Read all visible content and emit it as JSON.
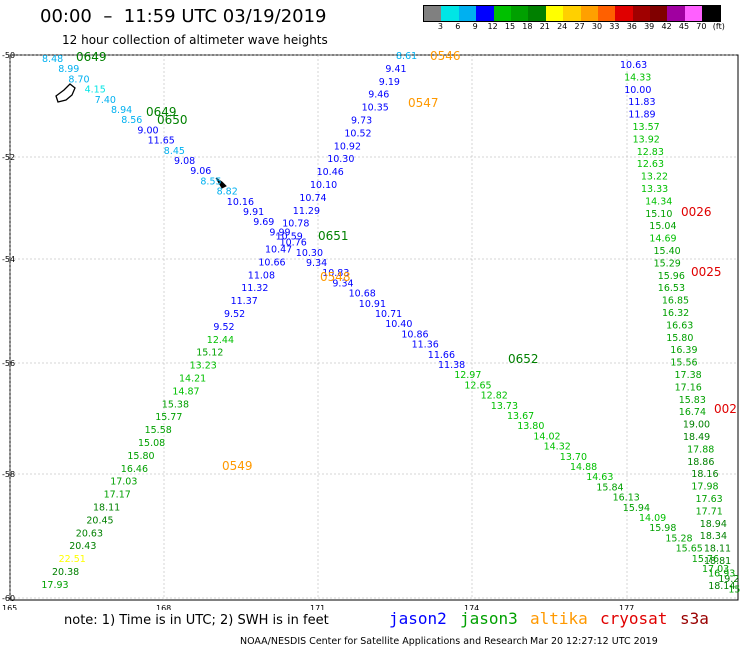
{
  "title": "00:00  –  11:59 UTC 03/19/2019",
  "subtitle": "12 hour collection of altimeter wave heights",
  "colorbar": {
    "labels": [
      "3",
      "6",
      "9",
      "12",
      "15",
      "18",
      "21",
      "24",
      "27",
      "30",
      "33",
      "36",
      "39",
      "42",
      "45",
      "70",
      "(ft)"
    ],
    "colors": [
      "#808080",
      "#00e5e5",
      "#00b0f0",
      "#0000ff",
      "#00c000",
      "#00a000",
      "#008000",
      "#ffff00",
      "#ffd000",
      "#ffa000",
      "#ff6000",
      "#e00000",
      "#a00000",
      "#800000",
      "#a000a0",
      "#ff60ff",
      "#000000"
    ]
  },
  "axes": {
    "x_ticks": [
      "165",
      "168",
      "171",
      "174",
      "177"
    ],
    "y_ticks": [
      "-50",
      "-52",
      "-54",
      "-56",
      "-58",
      "-60"
    ]
  },
  "tracks": [
    {
      "satellite": "jason3",
      "times": [
        {
          "label": "0649"
        },
        {
          "label": "0649"
        },
        {
          "label": "0650"
        },
        {
          "label": "0651"
        },
        {
          "label": "0652"
        }
      ]
    },
    {
      "satellite": "altika",
      "times": [
        {
          "label": "0546"
        },
        {
          "label": "0547"
        },
        {
          "label": "0548"
        },
        {
          "label": "0549"
        }
      ]
    },
    {
      "satellite": "cryosat",
      "times": [
        {
          "label": "0026"
        },
        {
          "label": "0025"
        },
        {
          "label": "002"
        }
      ]
    }
  ],
  "swh_values": {
    "track_a": [
      "8.48",
      "8.99",
      "8.70",
      "4.15",
      "7.40",
      "8.94",
      "8.56",
      "9.00",
      "11.65",
      "8.45",
      "9.08",
      "9.06",
      "8.55",
      "8.82",
      "10.16",
      "9.91",
      "9.69",
      "9.99",
      "10.76",
      "10.30",
      "9.34",
      "10.83",
      "9.34",
      "10.68",
      "10.91",
      "10.71",
      "10.40",
      "10.86",
      "11.36",
      "11.66",
      "11.38",
      "12.97",
      "12.65",
      "12.82",
      "13.73",
      "13.67",
      "13.80",
      "14.02",
      "14.32",
      "13.70",
      "14.88",
      "14.63",
      "15.84",
      "16.13",
      "15.94",
      "14.09",
      "15.98",
      "15.28",
      "15.65",
      "15.76",
      "17.03",
      "19.25",
      "15.41"
    ],
    "track_b": [
      "8.61",
      "9.41",
      "9.19",
      "9.46",
      "10.35",
      "9.73",
      "10.52",
      "10.92",
      "10.30",
      "10.46",
      "10.10",
      "10.74",
      "11.29",
      "10.78",
      "10.59",
      "10.47",
      "10.66",
      "11.08",
      "11.32",
      "11.37",
      "9.52",
      "9.52",
      "12.44",
      "15.12",
      "13.23",
      "14.21",
      "14.87",
      "15.38",
      "15.77",
      "15.58",
      "15.08",
      "15.80",
      "16.46",
      "17.03",
      "17.17",
      "18.11",
      "20.45",
      "20.63",
      "20.43",
      "22.51",
      "20.38",
      "17.93"
    ],
    "track_c": [
      "10.63",
      "14.33",
      "10.00",
      "11.83",
      "11.89",
      "13.57",
      "13.92",
      "12.83",
      "12.63",
      "13.22",
      "13.33",
      "14.34",
      "15.10",
      "15.04",
      "14.69",
      "15.40",
      "15.29",
      "15.96",
      "16.53",
      "16.85",
      "16.32",
      "16.63",
      "15.80",
      "16.39",
      "15.56",
      "17.38",
      "17.16",
      "15.83",
      "16.74",
      "19.00",
      "18.49",
      "17.88",
      "18.86",
      "18.16",
      "17.98",
      "17.63",
      "17.71",
      "18.94",
      "18.34",
      "18.11",
      "18.81",
      "16.93",
      "18.14"
    ]
  },
  "legend": {
    "note": "note:  1) Time is in UTC;  2) SWH is in feet",
    "sats": [
      {
        "name": "jason2",
        "color": "#0000ff"
      },
      {
        "name": "jason3",
        "color": "#00a000"
      },
      {
        "name": "altika",
        "color": "#ff9900"
      },
      {
        "name": "cryosat",
        "color": "#e00000"
      },
      {
        "name": "s3a",
        "color": "#990000"
      }
    ]
  },
  "credit": "NOAA/NESDIS Center for Satellite Applications and Research",
  "timestamp": "Mar 20 12:27:12 UTC 2019"
}
